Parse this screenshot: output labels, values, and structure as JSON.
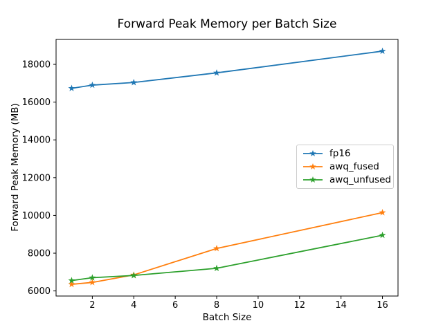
{
  "chart_data": {
    "type": "line",
    "title": "Forward Peak Memory per Batch Size",
    "xlabel": "Batch Size",
    "ylabel": "Forward Peak Memory (MB)",
    "x": [
      1,
      2,
      4,
      8,
      16
    ],
    "series": [
      {
        "name": "fp16",
        "color": "#1f77b4",
        "marker": "star",
        "values": [
          16730,
          16900,
          17040,
          17550,
          18700
        ]
      },
      {
        "name": "awq_fused",
        "color": "#ff7f0e",
        "marker": "star",
        "values": [
          6350,
          6450,
          6850,
          8250,
          10150
        ]
      },
      {
        "name": "awq_unfused",
        "color": "#2ca02c",
        "marker": "star",
        "values": [
          6550,
          6700,
          6820,
          7200,
          8950
        ]
      }
    ],
    "xticks": [
      2,
      4,
      6,
      8,
      10,
      12,
      14,
      16
    ],
    "yticks": [
      6000,
      8000,
      10000,
      12000,
      14000,
      16000,
      18000
    ],
    "xlim": [
      0.25,
      16.75
    ],
    "ylim": [
      5730,
      19320
    ],
    "grid": false,
    "legend": {
      "position": "center-right",
      "entries": [
        "fp16",
        "awq_fused",
        "awq_unfused"
      ]
    },
    "axis_color": "#000000",
    "background": "#ffffff"
  }
}
